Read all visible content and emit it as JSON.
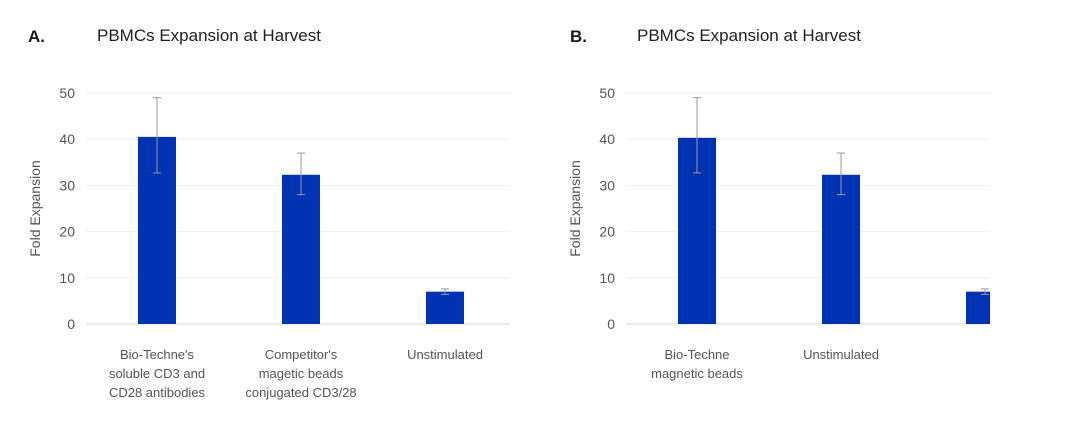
{
  "chart_data": [
    {
      "type": "bar",
      "panel_letter": "A.",
      "title": "PBMCs Expansion at Harvest",
      "ylabel": "Fold Expansion",
      "xlabel": "",
      "ylim": [
        0,
        50
      ],
      "yticks": [
        0,
        10,
        20,
        30,
        40,
        50
      ],
      "grid": true,
      "categories": [
        [
          "Bio-Techne's",
          "soluble CD3 and",
          "CD28 antibodies"
        ],
        [
          "Competitor's",
          "magetic beads",
          "conjugated CD3/28"
        ],
        [
          "Unstimulated"
        ]
      ],
      "values": [
        40.5,
        32.3,
        7.0
      ],
      "error_high": [
        49.0,
        37.0,
        7.6
      ],
      "error_low": [
        32.7,
        28.0,
        6.4
      ],
      "bar_color": "#0033b3"
    },
    {
      "type": "bar",
      "panel_letter": "B.",
      "title": "PBMCs Expansion at Harvest",
      "ylabel": "Fold Expansion",
      "xlabel": "",
      "ylim": [
        0,
        50
      ],
      "yticks": [
        0,
        10,
        20,
        30,
        40,
        50
      ],
      "grid": true,
      "categories": [
        [
          "Bio-Techne",
          "magnetic beads"
        ],
        [
          "Unstimulated"
        ],
        []
      ],
      "values": [
        40.3,
        32.3,
        7.0
      ],
      "error_high": [
        49.0,
        37.0,
        7.6
      ],
      "error_low": [
        32.7,
        28.0,
        6.4
      ],
      "bar_color": "#0033b3"
    }
  ]
}
